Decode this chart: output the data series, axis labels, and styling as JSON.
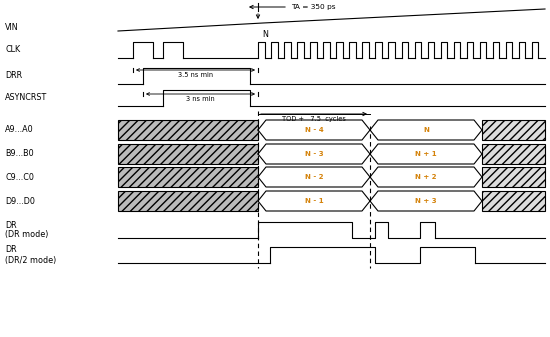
{
  "background_color": "#ffffff",
  "signal_color": "#000000",
  "bus_text_color": "#d4820a",
  "label_fontsize": 5.8,
  "signal_fontsize": 5.0,
  "anno_fontsize": 4.8,
  "lw": 0.8,
  "ta_label": "TA = 350 ps",
  "tod_label": "TOD +   7.5  cycles",
  "annotation_35": "3.5 ns min",
  "annotation_3": "3 ns min",
  "n_label": "N",
  "signals": [
    "VIN",
    "CLK",
    "DRR",
    "ASYNCRST",
    "A9...A0",
    "B9...B0",
    "C9...C0",
    "D9...D0"
  ],
  "dr_label1": "DR",
  "dr_label2": "(DR mode)",
  "dr2_label1": "DR",
  "dr2_label2": "(DR/2 mode)",
  "bus_labels_1": [
    "N - 4",
    "N - 3",
    "N - 2",
    "N - 1"
  ],
  "bus_labels_2": [
    "N",
    "N + 1",
    "N + 2",
    "N + 3"
  ],
  "hatch_facecolor": "#bbbbbb",
  "hatch_pattern": "////",
  "seg3_hatch_facecolor": "#dddddd",
  "seg3_hatch_pattern": "////"
}
